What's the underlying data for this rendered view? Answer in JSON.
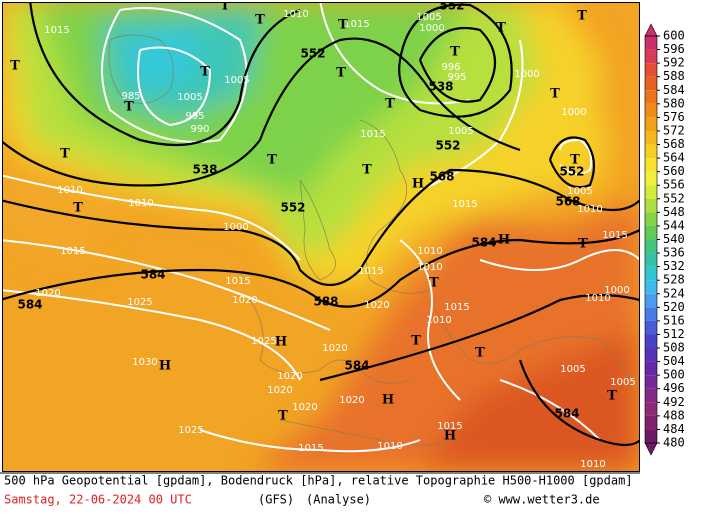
{
  "map": {
    "geopotential_labels": [
      "552",
      "538",
      "552",
      "538",
      "568",
      "552",
      "568",
      "552",
      "584",
      "584",
      "584",
      "588",
      "584",
      "584",
      "552"
    ],
    "pressure_labels": [
      "1015",
      "1010",
      "1015",
      "1005",
      "1000",
      "996",
      "995",
      "1000",
      "985",
      "1005",
      "995",
      "990",
      "1005",
      "1000",
      "1005",
      "1015",
      "1005",
      "1010",
      "1010",
      "1010",
      "1000",
      "1015",
      "1015",
      "1020",
      "1025",
      "1020",
      "1020",
      "1015",
      "1010",
      "1010",
      "1015",
      "1015",
      "1015",
      "1000",
      "1025",
      "1030",
      "1020",
      "1020",
      "1020",
      "1020",
      "1020",
      "1025",
      "1015",
      "1010",
      "1015",
      "1005",
      "1005",
      "1010",
      "1010",
      "1010"
    ],
    "centers": [
      "T",
      "T",
      "T",
      "T",
      "T",
      "T",
      "T",
      "T",
      "T",
      "T",
      "T",
      "T",
      "T",
      "T",
      "T",
      "T",
      "T",
      "T",
      "T",
      "T",
      "T",
      "T",
      "T",
      "H",
      "H",
      "H",
      "H",
      "H",
      "H"
    ]
  },
  "legend": {
    "ticks": [
      600,
      596,
      592,
      588,
      584,
      580,
      576,
      572,
      568,
      564,
      560,
      556,
      552,
      548,
      544,
      540,
      536,
      532,
      528,
      524,
      520,
      516,
      512,
      508,
      504,
      500,
      496,
      492,
      488,
      484,
      480
    ],
    "colors": [
      "#cc2f6c",
      "#dc3a55",
      "#e64c36",
      "#ea5f22",
      "#ed741a",
      "#f08a18",
      "#f2a018",
      "#f5b81c",
      "#f7cf24",
      "#f8e22c",
      "#eef03a",
      "#d2ea3a",
      "#acdf3e",
      "#86d446",
      "#62cb56",
      "#45c27e",
      "#34c0a6",
      "#30c6d0",
      "#3cbbee",
      "#4a9cf0",
      "#4a7ce8",
      "#4a5cd8",
      "#4842c8",
      "#5632b8",
      "#6628a8",
      "#762898",
      "#862888",
      "#902878",
      "#822070",
      "#701868"
    ]
  },
  "caption": {
    "line1": "500 hPa Geopotential [gpdam], Bodendruck [hPa], relative Topographie H500-H1000 [gpdam]",
    "date": "Samstag, 22-06-2024  00 UTC",
    "model": "(GFS)",
    "run": "(Analyse)",
    "credit": "© www.wetter3.de"
  }
}
